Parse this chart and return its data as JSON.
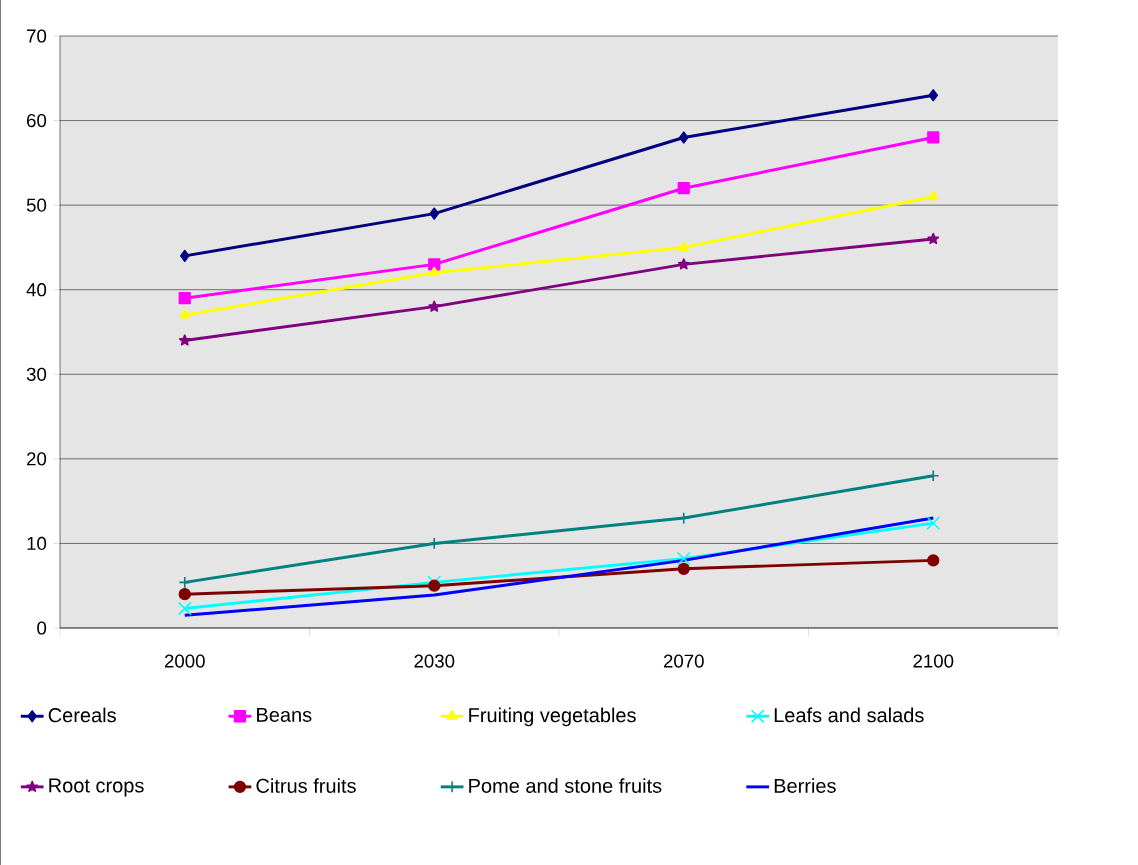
{
  "chart_data": {
    "type": "line",
    "categories": [
      "2000",
      "2030",
      "2070",
      "2100"
    ],
    "ylim": [
      0,
      70
    ],
    "yticks": [
      0,
      10,
      20,
      30,
      40,
      50,
      60,
      70
    ],
    "grid": "y",
    "legend": "bottom",
    "series": [
      {
        "name": "Cereals",
        "color": "#000080",
        "marker": "diamond",
        "values": [
          44,
          49,
          58,
          63
        ]
      },
      {
        "name": "Beans",
        "color": "#ff00ff",
        "marker": "square",
        "values": [
          39,
          43,
          52,
          58
        ]
      },
      {
        "name": "Fruiting vegetables",
        "color": "#ffff00",
        "marker": "triangle",
        "values": [
          37,
          42,
          45,
          51
        ]
      },
      {
        "name": "Leafs and salads",
        "color": "#00ffff",
        "marker": "cross",
        "values": [
          2.3,
          5.4,
          8.2,
          12.4
        ]
      },
      {
        "name": "Root crops",
        "color": "#800080",
        "marker": "star",
        "values": [
          34,
          38,
          43,
          46
        ]
      },
      {
        "name": "Citrus fruits",
        "color": "#800000",
        "marker": "circle",
        "values": [
          4,
          5,
          7,
          8
        ]
      },
      {
        "name": "Pome and stone fruits",
        "color": "#008080",
        "marker": "plus",
        "values": [
          5.4,
          10,
          13,
          18
        ]
      },
      {
        "name": "Berries",
        "color": "#0000ff",
        "marker": "none",
        "values": [
          1.5,
          3.9,
          8,
          13
        ]
      }
    ]
  }
}
